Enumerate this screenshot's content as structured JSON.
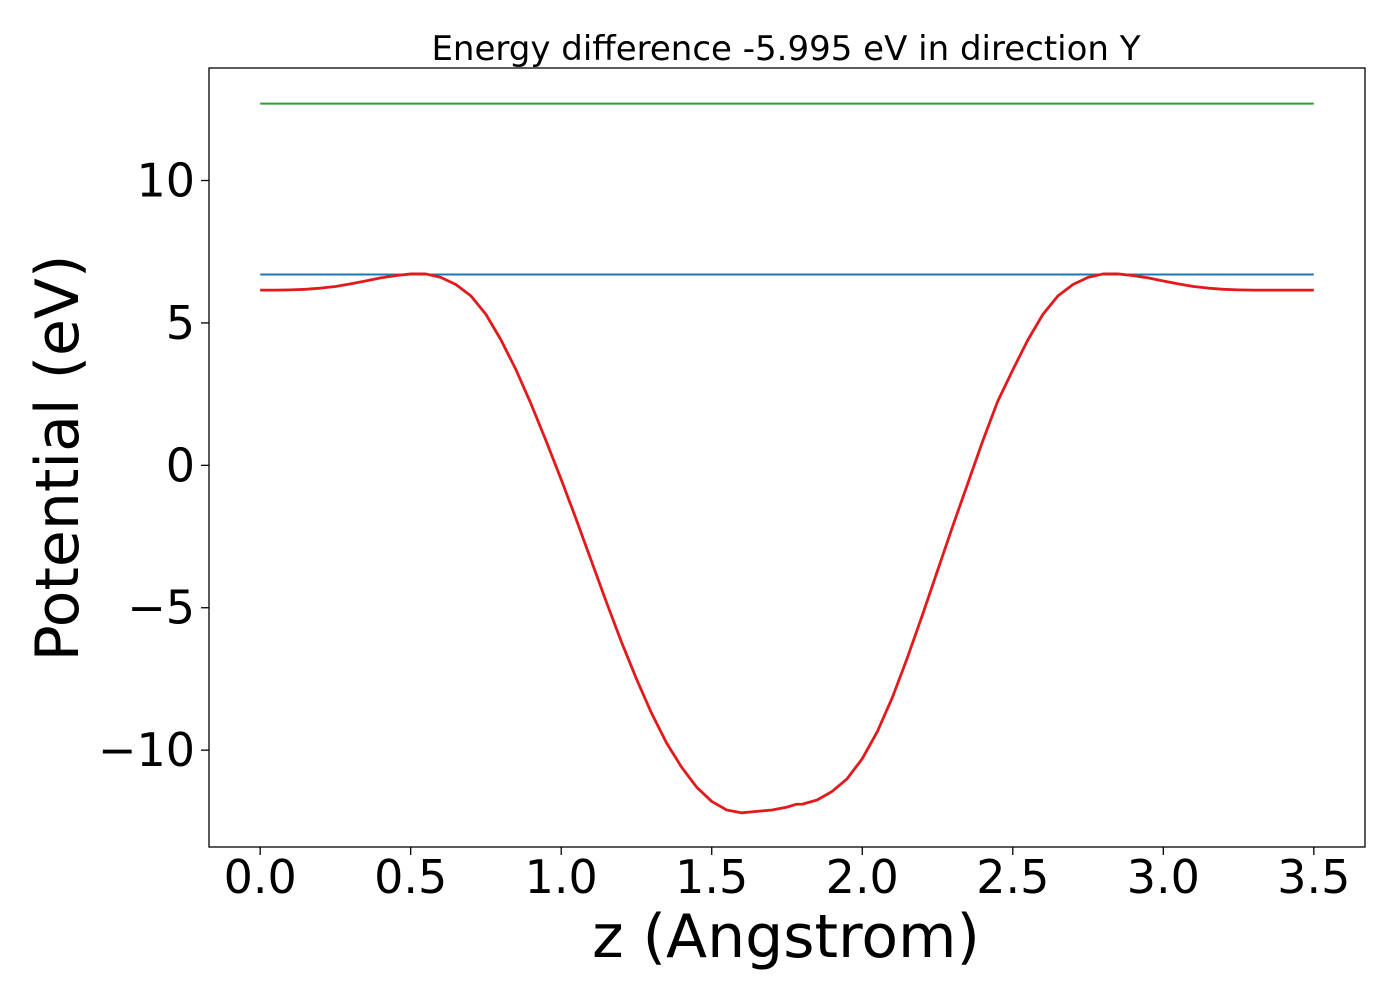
{
  "chart_data": {
    "type": "line",
    "title": "Energy difference -5.995 eV in direction Y",
    "xlabel": "z (Angstrom)",
    "ylabel": "Potential (eV)",
    "xlim": [
      -0.17,
      3.67
    ],
    "ylim": [
      -13.4,
      13.95
    ],
    "xticks": [
      0.0,
      0.5,
      1.0,
      1.5,
      2.0,
      2.5,
      3.0,
      3.5
    ],
    "xtick_labels": [
      "0.0",
      "0.5",
      "1.0",
      "1.5",
      "2.0",
      "2.5",
      "3.0",
      "3.5"
    ],
    "yticks": [
      -10,
      -5,
      0,
      5,
      10
    ],
    "ytick_labels": [
      "−10",
      "−5",
      "0",
      "5",
      "10"
    ],
    "grid": false,
    "series": [
      {
        "color": "#2ca02c",
        "x": [
          0.0,
          3.5
        ],
        "y": [
          12.7,
          12.7
        ]
      },
      {
        "color": "#1f77b4",
        "x": [
          0.0,
          3.5
        ],
        "y": [
          6.7,
          6.7
        ]
      },
      {
        "color": "#e31a1c",
        "x": [
          0.0,
          0.05,
          0.1,
          0.15,
          0.2,
          0.25,
          0.3,
          0.35,
          0.4,
          0.45,
          0.5,
          0.55,
          0.6,
          0.65,
          0.7,
          0.75,
          0.8,
          0.85,
          0.9,
          0.95,
          1.0,
          1.05,
          1.1,
          1.15,
          1.2,
          1.25,
          1.3,
          1.35,
          1.4,
          1.45,
          1.5,
          1.55,
          1.6,
          1.65,
          1.7,
          1.75,
          1.78,
          1.8,
          1.85,
          1.9,
          1.95,
          2.0,
          2.05,
          2.1,
          2.15,
          2.2,
          2.25,
          2.3,
          2.35,
          2.4,
          2.45,
          2.5,
          2.55,
          2.6,
          2.65,
          2.7,
          2.75,
          2.8,
          2.85,
          2.9,
          2.95,
          3.0,
          3.05,
          3.1,
          3.15,
          3.2,
          3.25,
          3.3,
          3.35,
          3.4,
          3.45,
          3.5
        ],
        "y": [
          6.15,
          6.15,
          6.16,
          6.18,
          6.22,
          6.28,
          6.37,
          6.47,
          6.58,
          6.66,
          6.72,
          6.72,
          6.6,
          6.35,
          5.95,
          5.3,
          4.4,
          3.35,
          2.15,
          0.85,
          -0.5,
          -1.9,
          -3.35,
          -4.8,
          -6.2,
          -7.5,
          -8.7,
          -9.75,
          -10.6,
          -11.3,
          -11.8,
          -12.1,
          -12.2,
          -12.15,
          -12.1,
          -12.0,
          -11.9,
          -11.9,
          -11.75,
          -11.45,
          -11.0,
          -10.3,
          -9.35,
          -8.15,
          -6.75,
          -5.25,
          -3.7,
          -2.15,
          -0.65,
          0.85,
          2.25,
          3.35,
          4.4,
          5.3,
          5.95,
          6.35,
          6.6,
          6.72,
          6.72,
          6.66,
          6.58,
          6.47,
          6.37,
          6.28,
          6.22,
          6.18,
          6.16,
          6.15,
          6.15,
          6.15,
          6.15,
          6.15
        ]
      }
    ]
  }
}
